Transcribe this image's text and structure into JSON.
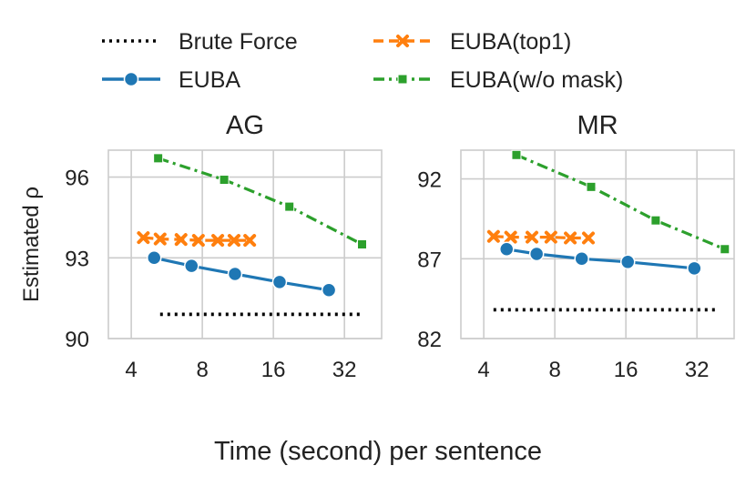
{
  "chart_data": {
    "type": "line",
    "xlabel": "Time (second) per sentence",
    "legend": {
      "placement": "top",
      "entries": [
        {
          "label": "Brute Force",
          "color": "#000000",
          "line": "dotted",
          "marker": "none"
        },
        {
          "label": "EUBA(top1)",
          "color": "#ff7f0e",
          "line": "dashed",
          "marker": "x"
        },
        {
          "label": "EUBA",
          "color": "#1f77b4",
          "line": "solid",
          "marker": "circle"
        },
        {
          "label": "EUBA(w/o mask)",
          "color": "#2ca02c",
          "line": "dashdot",
          "marker": "square"
        }
      ]
    },
    "x_scale": "log2",
    "grid": true,
    "panels": [
      {
        "title": "AG",
        "ylabel": "Estimated ρ",
        "xticks": [
          "4",
          "8",
          "16",
          "32"
        ],
        "xlim": [
          3.2,
          46
        ],
        "yticks": [
          "90",
          "93",
          "96"
        ],
        "ylim": [
          90,
          97
        ],
        "series": [
          {
            "name": "Brute Force",
            "x": [
              5.3,
              38.0
            ],
            "y": [
              90.9,
              90.9
            ]
          },
          {
            "name": "EUBA(top1)",
            "x": [
              4.5,
              5.3,
              6.5,
              7.7,
              9.3,
              10.9,
              12.7
            ],
            "y": [
              93.75,
              93.7,
              93.68,
              93.65,
              93.65,
              93.65,
              93.65
            ]
          },
          {
            "name": "EUBA",
            "x": [
              5.0,
              7.2,
              11.0,
              17.0,
              27.5
            ],
            "y": [
              93.0,
              92.7,
              92.4,
              92.1,
              91.8
            ]
          },
          {
            "name": "EUBA(w/o mask)",
            "x": [
              5.2,
              9.9,
              18.7,
              38.0
            ],
            "y": [
              96.7,
              95.9,
              94.9,
              93.5
            ]
          }
        ]
      },
      {
        "title": "MR",
        "ylabel": "",
        "xticks": [
          "4",
          "8",
          "16",
          "32"
        ],
        "xlim": [
          3.2,
          46
        ],
        "yticks": [
          "82",
          "87",
          "92"
        ],
        "ylim": [
          82,
          93.8
        ],
        "series": [
          {
            "name": "Brute Force",
            "x": [
              4.4,
              39.0
            ],
            "y": [
              83.8,
              83.8
            ]
          },
          {
            "name": "EUBA(top1)",
            "x": [
              4.4,
              5.2,
              6.4,
              7.7,
              9.3,
              11.1
            ],
            "y": [
              88.4,
              88.35,
              88.35,
              88.35,
              88.3,
              88.3
            ]
          },
          {
            "name": "EUBA",
            "x": [
              5.0,
              6.7,
              10.4,
              16.3,
              31.2
            ],
            "y": [
              87.6,
              87.3,
              87.0,
              86.8,
              86.4
            ]
          },
          {
            "name": "EUBA(w/o mask)",
            "x": [
              5.5,
              11.4,
              21.4,
              42.0
            ],
            "y": [
              93.5,
              91.5,
              89.4,
              87.6
            ]
          }
        ]
      }
    ]
  }
}
